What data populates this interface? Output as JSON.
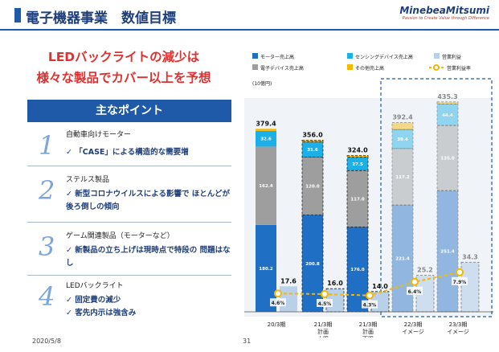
{
  "header": {
    "title": "電子機器事業　数値目標",
    "logo_main": "MinebeaMitsumi",
    "logo_sub": "Passion to Create Value through Difference"
  },
  "headline": {
    "line1": "LEDバックライトの減少は",
    "line2": "様々な製品でカバー以上を予想"
  },
  "points": {
    "heading": "主なポイント",
    "items": [
      {
        "num": "1",
        "title": "自動車向けモーター",
        "body": "✓ 「CASE」による構造的な需要増"
      },
      {
        "num": "2",
        "title": "ステルス製品",
        "body": "✓ 新型コロナウイルスによる影響で ほとんどが後ろ倒しの傾向"
      },
      {
        "num": "3",
        "title": "ゲーム関連製品（モーターなど）",
        "body": "✓ 新製品の立ち上げは現時点で特段の 問題はなし"
      },
      {
        "num": "4",
        "title": "LEDバックライト",
        "body": "✓ 固定費の減少\n✓ 客先内示は強含み"
      }
    ]
  },
  "footer": {
    "date": "2020/5/8",
    "page": "31"
  },
  "chart_data": {
    "type": "bar",
    "unit_label": "(10億円)",
    "legend": [
      "モーター売上高",
      "センシングデバイス売上高",
      "営業利益",
      "電子デバイス売上高",
      "その他売上高",
      "営業利益率"
    ],
    "categories": [
      "20/3期",
      "21/3期\n計画\n上限",
      "21/3期\n計画\n下限",
      "22/3期\nイメージ",
      "23/3期\nイメージ"
    ],
    "series": [
      {
        "name": "モーター売上高",
        "values": [
          180.2,
          200.8,
          176.0,
          221.4,
          251.4
        ]
      },
      {
        "name": "電子デバイス売上高",
        "values": [
          162.4,
          120.0,
          117.0,
          117.2,
          135.0
        ]
      },
      {
        "name": "センシングデバイス売上高",
        "values": [
          32.6,
          31.6,
          27.5,
          39.4,
          44.4
        ]
      },
      {
        "name": "その他売上高",
        "values": [
          4.3,
          3.6,
          3.5,
          14.4,
          4.5
        ]
      }
    ],
    "totals": [
      379.4,
      356.0,
      324.0,
      392.4,
      435.3
    ],
    "operating_profit": [
      17.6,
      16.0,
      14.0,
      25.2,
      34.3
    ],
    "operating_margin_labels": [
      "4.6%",
      "4.5%",
      "4.3%",
      "6.4%",
      "7.9%"
    ],
    "operating_margin": [
      4.6,
      4.5,
      4.3,
      6.4,
      7.9
    ],
    "colors": {
      "motor": "#1f6fc4",
      "electronic": "#9e9e9e",
      "sensing": "#1bb0e8",
      "other": "#f5b800",
      "profit": "#b8d0e8",
      "margin": "#f5b800"
    }
  }
}
